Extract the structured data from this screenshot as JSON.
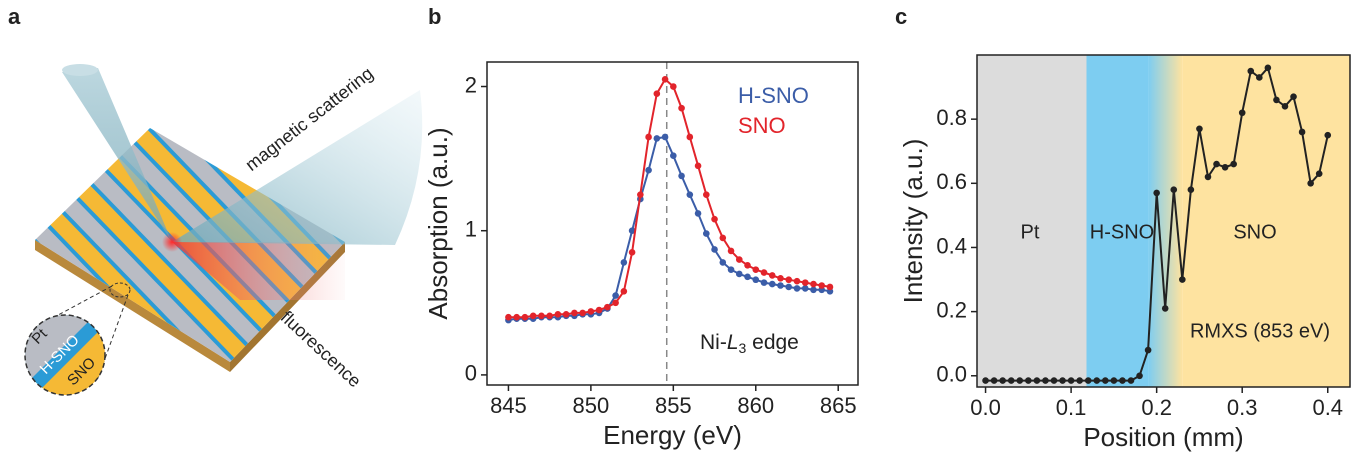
{
  "illustration": {
    "panel_label": "a",
    "labels": {
      "scattering": "magnetic scattering",
      "fluorescence": "fluorescence",
      "pt": "Pt",
      "hsno": "H-SNO",
      "sno": "SNO"
    }
  },
  "chart_data": [
    {
      "type": "line",
      "panel_label": "b",
      "xlabel": "Energy (eV)",
      "ylabel": "Absorption (a.u.)",
      "xlim": [
        843.7,
        866.2
      ],
      "ylim": [
        -0.07,
        2.17
      ],
      "xticks": [
        845,
        850,
        855,
        860,
        865
      ],
      "yticks": [
        0,
        1,
        2
      ],
      "x": [
        845,
        845.5,
        846,
        846.5,
        847,
        847.5,
        848,
        848.5,
        849,
        849.5,
        850,
        850.5,
        851,
        851.5,
        852,
        852.5,
        853,
        853.5,
        854,
        854.5,
        855,
        855.5,
        856,
        856.5,
        857,
        857.5,
        858,
        858.5,
        859,
        859.5,
        860,
        860.5,
        861,
        861.5,
        862,
        862.5,
        863,
        863.5,
        864,
        864.5
      ],
      "series": [
        {
          "name": "H-SNO",
          "color": "#3b5da8",
          "values": [
            0.38,
            0.39,
            0.39,
            0.39,
            0.4,
            0.4,
            0.4,
            0.41,
            0.41,
            0.42,
            0.42,
            0.43,
            0.46,
            0.55,
            0.78,
            1.0,
            1.22,
            1.42,
            1.64,
            1.65,
            1.52,
            1.38,
            1.25,
            1.12,
            0.98,
            0.87,
            0.78,
            0.73,
            0.7,
            0.68,
            0.66,
            0.64,
            0.63,
            0.62,
            0.61,
            0.6,
            0.6,
            0.59,
            0.59,
            0.58
          ]
        },
        {
          "name": "SNO",
          "color": "#e2242b",
          "values": [
            0.4,
            0.4,
            0.4,
            0.41,
            0.41,
            0.41,
            0.42,
            0.42,
            0.43,
            0.43,
            0.44,
            0.45,
            0.47,
            0.5,
            0.58,
            0.85,
            1.25,
            1.65,
            1.95,
            2.05,
            2.0,
            1.85,
            1.65,
            1.45,
            1.25,
            1.08,
            0.95,
            0.86,
            0.8,
            0.76,
            0.73,
            0.71,
            0.69,
            0.67,
            0.66,
            0.65,
            0.64,
            0.63,
            0.62,
            0.61
          ]
        }
      ],
      "vline": 854.6,
      "annotation": [
        "Ni-",
        "L",
        "3",
        " edge"
      ]
    },
    {
      "type": "line",
      "panel_label": "c",
      "xlabel": "Position (mm)",
      "ylabel": "Intensity (a.u.)",
      "xlim": [
        -0.01,
        0.426
      ],
      "ylim": [
        -0.035,
        1.0
      ],
      "xticks": [
        {
          "value": 0,
          "label": "0.0"
        },
        {
          "value": 0.1,
          "label": "0.1"
        },
        {
          "value": 0.2,
          "label": "0.2"
        },
        {
          "value": 0.3,
          "label": "0.3"
        },
        {
          "value": 0.4,
          "label": "0.4"
        }
      ],
      "yticks": [
        {
          "value": 0,
          "label": "0.0"
        },
        {
          "value": 0.2,
          "label": "0.2"
        },
        {
          "value": 0.4,
          "label": "0.4"
        },
        {
          "value": 0.6,
          "label": "0.6"
        },
        {
          "value": 0.8,
          "label": "0.8"
        }
      ],
      "regions": [
        {
          "name": "Pt",
          "color": "#dcdcdc",
          "start": -0.01,
          "end": 0.118
        },
        {
          "name": "H-SNO",
          "color": "#7dcdf1",
          "start": 0.118,
          "end": 0.19
        },
        {
          "name": "SNO",
          "color": "#fee3a0",
          "start": 0.23,
          "end": 0.426
        }
      ],
      "x": [
        0,
        0.01,
        0.02,
        0.03,
        0.04,
        0.05,
        0.06,
        0.07,
        0.08,
        0.09,
        0.1,
        0.11,
        0.12,
        0.13,
        0.14,
        0.15,
        0.16,
        0.17,
        0.18,
        0.19,
        0.2,
        0.21,
        0.22,
        0.23,
        0.24,
        0.25,
        0.26,
        0.27,
        0.28,
        0.29,
        0.3,
        0.31,
        0.32,
        0.33,
        0.34,
        0.35,
        0.36,
        0.37,
        0.38,
        0.39,
        0.4
      ],
      "series": [
        {
          "color": "#222222",
          "values": [
            -0.015,
            -0.015,
            -0.015,
            -0.015,
            -0.015,
            -0.015,
            -0.015,
            -0.015,
            -0.015,
            -0.015,
            -0.015,
            -0.015,
            -0.015,
            -0.015,
            -0.015,
            -0.015,
            -0.015,
            -0.015,
            0.0,
            0.08,
            0.57,
            0.21,
            0.58,
            0.3,
            0.58,
            0.77,
            0.62,
            0.66,
            0.65,
            0.66,
            0.82,
            0.95,
            0.93,
            0.96,
            0.86,
            0.84,
            0.87,
            0.76,
            0.6,
            0.63,
            0.75
          ]
        }
      ],
      "annotation": "RMXS (853 eV)"
    }
  ]
}
